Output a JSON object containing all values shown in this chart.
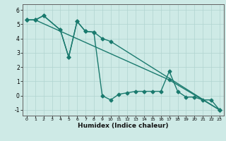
{
  "xlabel": "Humidex (Indice chaleur)",
  "xlim": [
    -0.5,
    23.5
  ],
  "ylim": [
    -1.4,
    6.4
  ],
  "yticks": [
    -1,
    0,
    1,
    2,
    3,
    4,
    5,
    6
  ],
  "xticks": [
    0,
    1,
    2,
    3,
    4,
    5,
    6,
    7,
    8,
    9,
    10,
    11,
    12,
    13,
    14,
    15,
    16,
    17,
    18,
    19,
    20,
    21,
    22,
    23
  ],
  "background_color": "#ceeae6",
  "grid_color": "#b0d4d0",
  "line_color": "#1a7a6e",
  "series1_x": [
    0,
    1,
    2,
    4,
    5,
    6,
    7,
    8,
    9,
    10,
    23
  ],
  "series1_y": [
    5.3,
    5.3,
    5.6,
    4.6,
    2.7,
    5.2,
    4.5,
    4.45,
    4.0,
    3.8,
    -1.0
  ],
  "series2_x": [
    0,
    1,
    2,
    4,
    5,
    6,
    7,
    8,
    9,
    10,
    11,
    12,
    13,
    14,
    15,
    16,
    17,
    18,
    19,
    20,
    21,
    22,
    23
  ],
  "series2_y": [
    5.3,
    5.3,
    5.6,
    4.6,
    2.7,
    5.2,
    4.5,
    4.45,
    0.0,
    -0.3,
    0.1,
    0.2,
    0.3,
    0.3,
    0.3,
    0.3,
    1.7,
    0.3,
    -0.1,
    -0.1,
    -0.3,
    -0.3,
    -1.0
  ],
  "series3_x": [
    0,
    1,
    17,
    23
  ],
  "series3_y": [
    5.3,
    5.3,
    1.1,
    -1.0
  ],
  "markersize": 2.5,
  "linewidth": 1.0
}
